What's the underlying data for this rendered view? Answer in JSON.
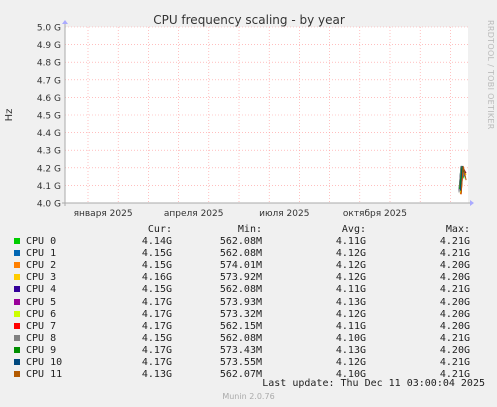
{
  "side_label": "RRDTOOL / TOBI OETIKER",
  "legend_header": {
    "cur": "Cur:",
    "min": "Min:",
    "avg": "Avg:",
    "max": "Max:"
  },
  "last_update": "Last update: Thu Dec 11 03:00:04 2025",
  "footer": "Munin 2.0.76",
  "chart_data": {
    "type": "line",
    "title": "CPU frequency scaling - by year",
    "ylabel": "Hz",
    "y_tick_labels": [
      "4.0 G",
      "4.1 G",
      "4.2 G",
      "4.3 G",
      "4.4 G",
      "4.5 G",
      "4.6 G",
      "4.7 G",
      "4.8 G",
      "4.9 G",
      "5.0 G"
    ],
    "y_ticks": [
      4.0,
      4.1,
      4.2,
      4.3,
      4.4,
      4.5,
      4.6,
      4.7,
      4.8,
      4.9,
      5.0
    ],
    "ylim": [
      4.0,
      5.0
    ],
    "x_tick_labels": [
      "января 2025",
      "апреля 2025",
      "июля 2025",
      "октября 2025"
    ],
    "grid": true,
    "series": [
      {
        "name": "CPU 0",
        "color": "#00cc00",
        "cur": "4.14G",
        "min": "562.08M",
        "avg": "4.11G",
        "max": "4.21G",
        "values": [
          4.07,
          4.21,
          4.14
        ]
      },
      {
        "name": "CPU 1",
        "color": "#0066b3",
        "cur": "4.15G",
        "min": "562.08M",
        "avg": "4.12G",
        "max": "4.21G",
        "values": [
          4.08,
          4.21,
          4.15
        ]
      },
      {
        "name": "CPU 2",
        "color": "#ff8000",
        "cur": "4.15G",
        "min": "574.01M",
        "avg": "4.12G",
        "max": "4.20G",
        "values": [
          4.05,
          4.2,
          4.15
        ]
      },
      {
        "name": "CPU 3",
        "color": "#ffcc00",
        "cur": "4.16G",
        "min": "573.92M",
        "avg": "4.12G",
        "max": "4.20G",
        "values": [
          4.06,
          4.2,
          4.16
        ]
      },
      {
        "name": "CPU 4",
        "color": "#330099",
        "cur": "4.15G",
        "min": "562.08M",
        "avg": "4.11G",
        "max": "4.21G",
        "values": [
          4.07,
          4.21,
          4.15
        ]
      },
      {
        "name": "CPU 5",
        "color": "#990099",
        "cur": "4.17G",
        "min": "573.93M",
        "avg": "4.13G",
        "max": "4.20G",
        "values": [
          4.08,
          4.2,
          4.17
        ]
      },
      {
        "name": "CPU 6",
        "color": "#ccff00",
        "cur": "4.17G",
        "min": "573.32M",
        "avg": "4.12G",
        "max": "4.20G",
        "values": [
          4.06,
          4.2,
          4.17
        ]
      },
      {
        "name": "CPU 7",
        "color": "#ff0000",
        "cur": "4.17G",
        "min": "562.15M",
        "avg": "4.11G",
        "max": "4.20G",
        "values": [
          4.05,
          4.2,
          4.17
        ]
      },
      {
        "name": "CPU 8",
        "color": "#808080",
        "cur": "4.15G",
        "min": "562.08M",
        "avg": "4.10G",
        "max": "4.21G",
        "values": [
          4.06,
          4.21,
          4.15
        ]
      },
      {
        "name": "CPU 9",
        "color": "#008f00",
        "cur": "4.17G",
        "min": "573.43M",
        "avg": "4.13G",
        "max": "4.20G",
        "values": [
          4.08,
          4.2,
          4.17
        ]
      },
      {
        "name": "CPU 10",
        "color": "#00487d",
        "cur": "4.17G",
        "min": "573.55M",
        "avg": "4.12G",
        "max": "4.21G",
        "values": [
          4.07,
          4.21,
          4.17
        ]
      },
      {
        "name": "CPU 11",
        "color": "#b35a00",
        "cur": "4.13G",
        "min": "562.07M",
        "avg": "4.10G",
        "max": "4.21G",
        "values": [
          4.05,
          4.21,
          4.13
        ]
      }
    ]
  }
}
